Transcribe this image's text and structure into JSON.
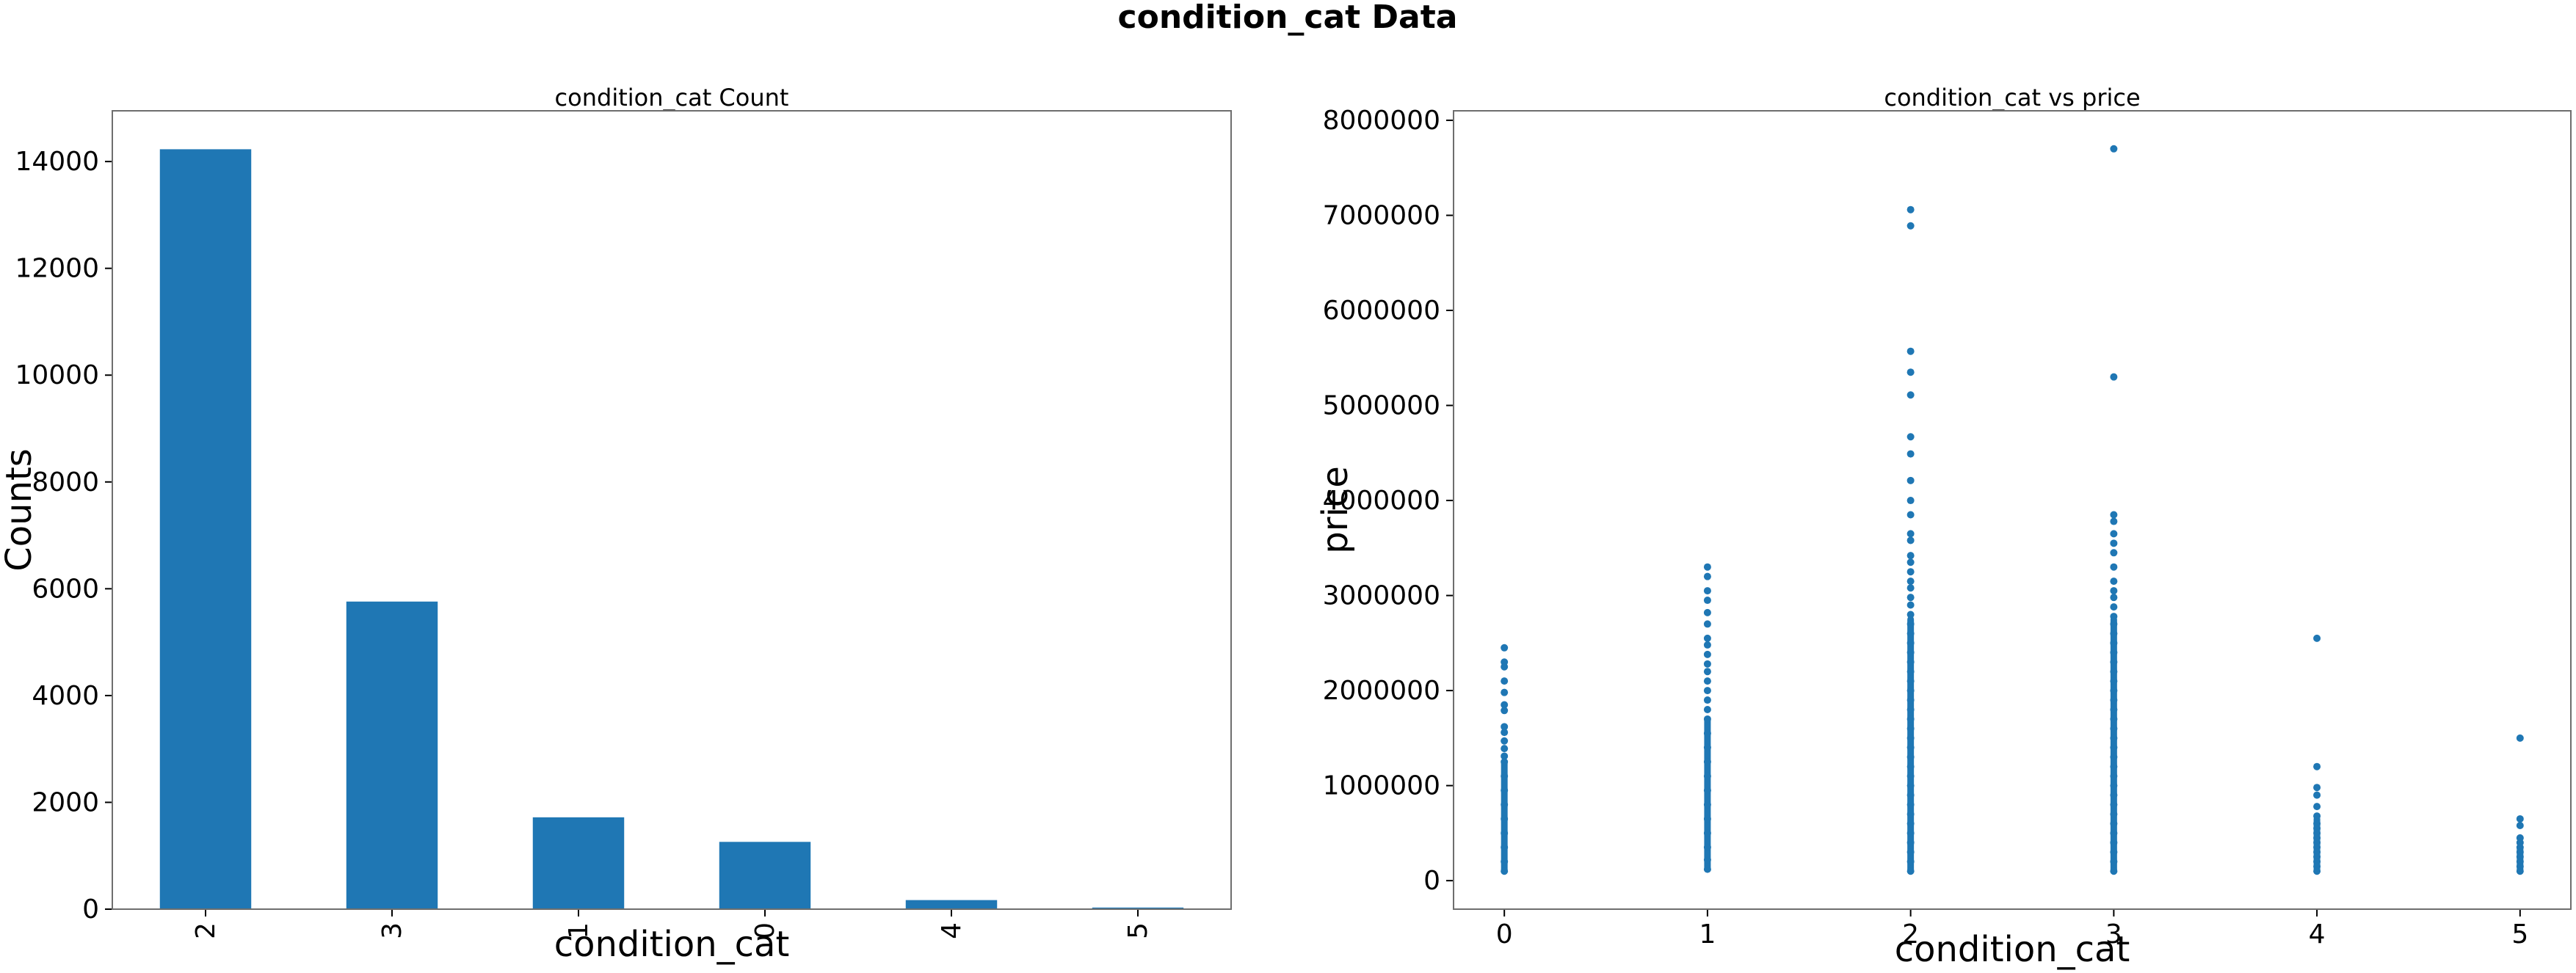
{
  "figure_title": "condition_cat Data",
  "chart_data": [
    {
      "type": "bar",
      "title": "condition_cat Count",
      "xlabel": "condition_cat",
      "ylabel": "Counts",
      "categories": [
        "2",
        "3",
        "1",
        "0",
        "4",
        "5"
      ],
      "values": [
        14230,
        5760,
        1720,
        1260,
        170,
        30
      ],
      "ylim": [
        0,
        14950
      ],
      "yticks": [
        0,
        2000,
        4000,
        6000,
        8000,
        10000,
        12000,
        14000
      ],
      "color": "#1f77b4",
      "grid": false,
      "tick_label_rotation": 90
    },
    {
      "type": "scatter",
      "title": "condition_cat vs price",
      "xlabel": "condition_cat",
      "ylabel": "price",
      "xlim": [
        -0.25,
        5.25
      ],
      "ylim": [
        -300000,
        8100000
      ],
      "xticks": [
        0,
        1,
        2,
        3,
        4,
        5
      ],
      "yticks": [
        0,
        1000000,
        2000000,
        3000000,
        4000000,
        5000000,
        6000000,
        7000000,
        8000000
      ],
      "color": "#1f77b4",
      "grid": false,
      "points": [
        {
          "x": 0,
          "y": 2450000
        },
        {
          "x": 0,
          "y": 2300000
        },
        {
          "x": 0,
          "y": 2250000
        },
        {
          "x": 0,
          "y": 2100000
        },
        {
          "x": 0,
          "y": 1980000
        },
        {
          "x": 0,
          "y": 1850000
        },
        {
          "x": 0,
          "y": 1790000
        },
        {
          "x": 0,
          "y": 1620000
        },
        {
          "x": 0,
          "y": 1560000
        },
        {
          "x": 0,
          "y": 1470000
        },
        {
          "x": 0,
          "y": 1390000
        },
        {
          "x": 0,
          "y": 1310000
        },
        {
          "x": 0,
          "y": 1250000
        },
        {
          "x": 0,
          "y": 1100000
        },
        {
          "x": 0,
          "y": 950000
        },
        {
          "x": 0,
          "y": 800000
        },
        {
          "x": 0,
          "y": 650000
        },
        {
          "x": 0,
          "y": 500000
        },
        {
          "x": 0,
          "y": 350000
        },
        {
          "x": 0,
          "y": 200000
        },
        {
          "x": 0,
          "y": 100000
        },
        {
          "x": 1,
          "y": 3300000
        },
        {
          "x": 1,
          "y": 3200000
        },
        {
          "x": 1,
          "y": 3050000
        },
        {
          "x": 1,
          "y": 2950000
        },
        {
          "x": 1,
          "y": 2820000
        },
        {
          "x": 1,
          "y": 2700000
        },
        {
          "x": 1,
          "y": 2550000
        },
        {
          "x": 1,
          "y": 2480000
        },
        {
          "x": 1,
          "y": 2380000
        },
        {
          "x": 1,
          "y": 2280000
        },
        {
          "x": 1,
          "y": 2200000
        },
        {
          "x": 1,
          "y": 2100000
        },
        {
          "x": 1,
          "y": 2000000
        },
        {
          "x": 1,
          "y": 1900000
        },
        {
          "x": 1,
          "y": 1800000
        },
        {
          "x": 1,
          "y": 1700000
        },
        {
          "x": 1,
          "y": 1550000
        },
        {
          "x": 1,
          "y": 1400000
        },
        {
          "x": 1,
          "y": 1250000
        },
        {
          "x": 1,
          "y": 1100000
        },
        {
          "x": 1,
          "y": 950000
        },
        {
          "x": 1,
          "y": 800000
        },
        {
          "x": 1,
          "y": 650000
        },
        {
          "x": 1,
          "y": 500000
        },
        {
          "x": 1,
          "y": 350000
        },
        {
          "x": 1,
          "y": 220000
        },
        {
          "x": 1,
          "y": 120000
        },
        {
          "x": 2,
          "y": 7060000
        },
        {
          "x": 2,
          "y": 6890000
        },
        {
          "x": 2,
          "y": 5570000
        },
        {
          "x": 2,
          "y": 5350000
        },
        {
          "x": 2,
          "y": 5110000
        },
        {
          "x": 2,
          "y": 4670000
        },
        {
          "x": 2,
          "y": 4490000
        },
        {
          "x": 2,
          "y": 4210000
        },
        {
          "x": 2,
          "y": 4000000
        },
        {
          "x": 2,
          "y": 3850000
        },
        {
          "x": 2,
          "y": 3650000
        },
        {
          "x": 2,
          "y": 3580000
        },
        {
          "x": 2,
          "y": 3420000
        },
        {
          "x": 2,
          "y": 3350000
        },
        {
          "x": 2,
          "y": 3250000
        },
        {
          "x": 2,
          "y": 3150000
        },
        {
          "x": 2,
          "y": 3080000
        },
        {
          "x": 2,
          "y": 2980000
        },
        {
          "x": 2,
          "y": 2900000
        },
        {
          "x": 2,
          "y": 2800000
        },
        {
          "x": 2,
          "y": 2700000
        },
        {
          "x": 2,
          "y": 2600000
        },
        {
          "x": 2,
          "y": 2500000
        },
        {
          "x": 2,
          "y": 2400000
        },
        {
          "x": 2,
          "y": 2300000
        },
        {
          "x": 2,
          "y": 2200000
        },
        {
          "x": 2,
          "y": 2100000
        },
        {
          "x": 2,
          "y": 2000000
        },
        {
          "x": 2,
          "y": 1900000
        },
        {
          "x": 2,
          "y": 1800000
        },
        {
          "x": 2,
          "y": 1700000
        },
        {
          "x": 2,
          "y": 1600000
        },
        {
          "x": 2,
          "y": 1500000
        },
        {
          "x": 2,
          "y": 1400000
        },
        {
          "x": 2,
          "y": 1300000
        },
        {
          "x": 2,
          "y": 1200000
        },
        {
          "x": 2,
          "y": 1100000
        },
        {
          "x": 2,
          "y": 1000000
        },
        {
          "x": 2,
          "y": 900000
        },
        {
          "x": 2,
          "y": 800000
        },
        {
          "x": 2,
          "y": 700000
        },
        {
          "x": 2,
          "y": 600000
        },
        {
          "x": 2,
          "y": 500000
        },
        {
          "x": 2,
          "y": 400000
        },
        {
          "x": 2,
          "y": 300000
        },
        {
          "x": 2,
          "y": 200000
        },
        {
          "x": 2,
          "y": 100000
        },
        {
          "x": 3,
          "y": 7700000
        },
        {
          "x": 3,
          "y": 5300000
        },
        {
          "x": 3,
          "y": 3850000
        },
        {
          "x": 3,
          "y": 3780000
        },
        {
          "x": 3,
          "y": 3650000
        },
        {
          "x": 3,
          "y": 3550000
        },
        {
          "x": 3,
          "y": 3450000
        },
        {
          "x": 3,
          "y": 3300000
        },
        {
          "x": 3,
          "y": 3150000
        },
        {
          "x": 3,
          "y": 3050000
        },
        {
          "x": 3,
          "y": 2980000
        },
        {
          "x": 3,
          "y": 2880000
        },
        {
          "x": 3,
          "y": 2780000
        },
        {
          "x": 3,
          "y": 2700000
        },
        {
          "x": 3,
          "y": 2600000
        },
        {
          "x": 3,
          "y": 2500000
        },
        {
          "x": 3,
          "y": 2400000
        },
        {
          "x": 3,
          "y": 2300000
        },
        {
          "x": 3,
          "y": 2200000
        },
        {
          "x": 3,
          "y": 2100000
        },
        {
          "x": 3,
          "y": 2000000
        },
        {
          "x": 3,
          "y": 1900000
        },
        {
          "x": 3,
          "y": 1800000
        },
        {
          "x": 3,
          "y": 1700000
        },
        {
          "x": 3,
          "y": 1600000
        },
        {
          "x": 3,
          "y": 1500000
        },
        {
          "x": 3,
          "y": 1400000
        },
        {
          "x": 3,
          "y": 1300000
        },
        {
          "x": 3,
          "y": 1200000
        },
        {
          "x": 3,
          "y": 1100000
        },
        {
          "x": 3,
          "y": 1000000
        },
        {
          "x": 3,
          "y": 900000
        },
        {
          "x": 3,
          "y": 800000
        },
        {
          "x": 3,
          "y": 700000
        },
        {
          "x": 3,
          "y": 600000
        },
        {
          "x": 3,
          "y": 500000
        },
        {
          "x": 3,
          "y": 400000
        },
        {
          "x": 3,
          "y": 300000
        },
        {
          "x": 3,
          "y": 200000
        },
        {
          "x": 3,
          "y": 100000
        },
        {
          "x": 4,
          "y": 2550000
        },
        {
          "x": 4,
          "y": 1200000
        },
        {
          "x": 4,
          "y": 980000
        },
        {
          "x": 4,
          "y": 900000
        },
        {
          "x": 4,
          "y": 780000
        },
        {
          "x": 4,
          "y": 680000
        },
        {
          "x": 4,
          "y": 600000
        },
        {
          "x": 4,
          "y": 550000
        },
        {
          "x": 4,
          "y": 500000
        },
        {
          "x": 4,
          "y": 450000
        },
        {
          "x": 4,
          "y": 400000
        },
        {
          "x": 4,
          "y": 350000
        },
        {
          "x": 4,
          "y": 300000
        },
        {
          "x": 4,
          "y": 250000
        },
        {
          "x": 4,
          "y": 200000
        },
        {
          "x": 4,
          "y": 150000
        },
        {
          "x": 4,
          "y": 100000
        },
        {
          "x": 5,
          "y": 1500000
        },
        {
          "x": 5,
          "y": 650000
        },
        {
          "x": 5,
          "y": 580000
        },
        {
          "x": 5,
          "y": 450000
        },
        {
          "x": 5,
          "y": 400000
        },
        {
          "x": 5,
          "y": 350000
        },
        {
          "x": 5,
          "y": 300000
        },
        {
          "x": 5,
          "y": 250000
        },
        {
          "x": 5,
          "y": 200000
        },
        {
          "x": 5,
          "y": 150000
        },
        {
          "x": 5,
          "y": 100000
        }
      ]
    }
  ]
}
